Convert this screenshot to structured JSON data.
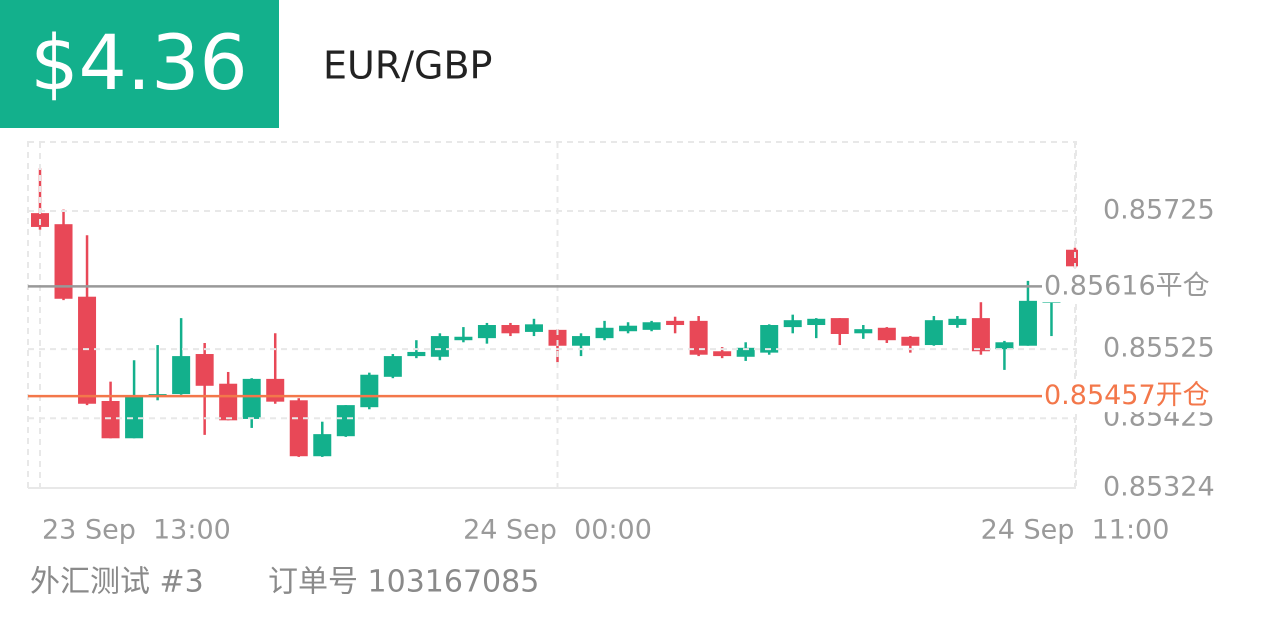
{
  "header": {
    "profit": "$4.36",
    "symbol": "EUR/GBP"
  },
  "chart_data": {
    "type": "candlestick",
    "categories": [
      "23 Sep  13:00",
      null,
      null,
      null,
      null,
      null,
      null,
      null,
      null,
      null,
      null,
      null,
      null,
      null,
      null,
      null,
      null,
      null,
      null,
      null,
      null,
      null,
      "24 Sep  00:00",
      null,
      null,
      null,
      null,
      null,
      null,
      null,
      null,
      null,
      null,
      null,
      null,
      null,
      null,
      null,
      null,
      null,
      null,
      null,
      null,
      null,
      "24 Sep  11:00"
    ],
    "open": [
      0.85722,
      0.85706,
      0.85601,
      0.8545,
      0.85396,
      0.85457,
      0.8546,
      0.85518,
      0.85475,
      0.85424,
      0.85482,
      0.85451,
      0.8537,
      0.85399,
      0.85441,
      0.85485,
      0.85515,
      0.85514,
      0.85538,
      0.85541,
      0.8556,
      0.8555,
      0.85553,
      0.8553,
      0.85541,
      0.85551,
      0.85553,
      0.85566,
      0.85566,
      0.85522,
      0.85514,
      0.8552,
      0.85557,
      0.8556,
      0.8557,
      0.85548,
      0.85556,
      0.85543,
      0.85531,
      0.8556,
      0.8557,
      0.85525,
      0.8553,
      0.85592,
      0.85669
    ],
    "high": [
      0.85787,
      0.85727,
      0.8569,
      0.85478,
      0.85509,
      0.85531,
      0.8557,
      0.85534,
      0.85492,
      0.85483,
      0.85548,
      0.85454,
      0.8542,
      0.85444,
      0.85491,
      0.85518,
      0.85538,
      0.85548,
      0.85557,
      0.85563,
      0.85563,
      0.85569,
      0.85554,
      0.85548,
      0.85566,
      0.85564,
      0.85566,
      0.85572,
      0.85573,
      0.85528,
      0.85535,
      0.85561,
      0.85575,
      0.8557,
      0.8557,
      0.8556,
      0.85557,
      0.85544,
      0.85573,
      0.85573,
      0.85593,
      0.85537,
      0.85624,
      0.85606,
      0.85672
    ],
    "low": [
      0.85698,
      0.85596,
      0.85444,
      0.85396,
      0.85396,
      0.85451,
      0.85459,
      0.85401,
      0.85422,
      0.85411,
      0.85446,
      0.85369,
      0.85369,
      0.85398,
      0.85438,
      0.85483,
      0.85512,
      0.85509,
      0.85535,
      0.85533,
      0.85544,
      0.85544,
      0.85506,
      0.85515,
      0.85538,
      0.85548,
      0.85551,
      0.85548,
      0.85515,
      0.85512,
      0.85508,
      0.85517,
      0.85548,
      0.85541,
      0.85531,
      0.8554,
      0.85534,
      0.8552,
      0.8553,
      0.85556,
      0.85517,
      0.85495,
      0.8553,
      0.85544,
      0.85643
    ],
    "close": [
      0.85702,
      0.85598,
      0.85446,
      0.85396,
      0.85457,
      0.8546,
      0.85515,
      0.85472,
      0.85422,
      0.85482,
      0.85449,
      0.8537,
      0.85402,
      0.85444,
      0.85488,
      0.85515,
      0.85521,
      0.85544,
      0.85543,
      0.8556,
      0.85548,
      0.85561,
      0.8553,
      0.85544,
      0.85556,
      0.85559,
      0.85564,
      0.8556,
      0.85517,
      0.85515,
      0.85527,
      0.8556,
      0.85567,
      0.85569,
      0.85547,
      0.85554,
      0.85538,
      0.8553,
      0.85567,
      0.85569,
      0.85522,
      0.85535,
      0.85595,
      0.85598,
      0.85645
    ],
    "up_color": "#13b08c",
    "down_color": "#e84857",
    "ylim": [
      0.85324,
      0.85825
    ],
    "yticks": [
      0.85725,
      0.85525,
      0.85425,
      0.85324
    ],
    "grid": true,
    "lines": [
      {
        "value": 0.85616,
        "label": "平仓",
        "color": "#999999"
      },
      {
        "value": 0.85457,
        "label": "开仓",
        "color": "#f3774a"
      }
    ]
  },
  "footer": {
    "account": "外汇测试 #3",
    "order": "订单号 103167085"
  }
}
